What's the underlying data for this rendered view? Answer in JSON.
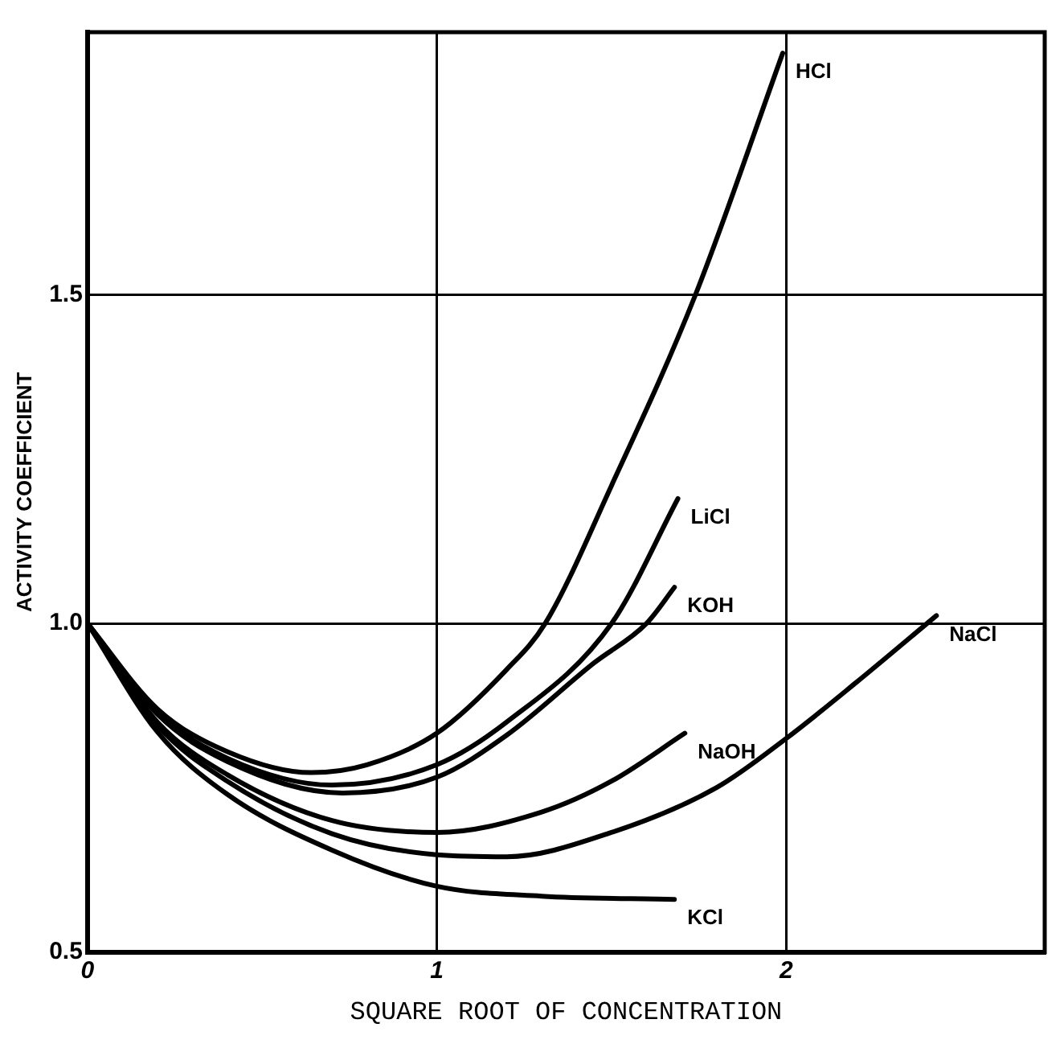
{
  "chart_data": {
    "type": "line",
    "xlabel": "SQUARE ROOT OF CONCENTRATION",
    "ylabel": "ACTIVITY COEFFICIENT",
    "xlim": [
      0,
      2.74
    ],
    "ylim": [
      0.5,
      1.9
    ],
    "xticks": [
      0,
      1,
      2
    ],
    "yticks": [
      0.5,
      {
        "value": 1.0,
        "label": "1.0"
      },
      1.5
    ],
    "grid": true,
    "legend": false,
    "marker": "none",
    "line_style": "solid",
    "series": [
      {
        "name": "HCl",
        "color": "#000000",
        "x": [
          0,
          0.2,
          0.4,
          0.64,
          0.8,
          1,
          1.2,
          1.31,
          1.5,
          1.74,
          1.99
        ],
        "values": [
          1,
          0.87,
          0.805,
          0.773,
          0.785,
          0.833,
          0.93,
          1.0,
          1.21,
          1.5,
          1.868
        ]
      },
      {
        "name": "LiCl",
        "color": "#000000",
        "x": [
          0,
          0.2,
          0.4,
          0.7,
          1,
          1.2,
          1.5,
          1.69
        ],
        "values": [
          1,
          0.865,
          0.795,
          0.754,
          0.785,
          0.85,
          1.0,
          1.19
        ]
      },
      {
        "name": "KOH",
        "color": "#000000",
        "x": [
          0,
          0.2,
          0.4,
          0.73,
          1,
          1.2,
          1.45,
          1.6,
          1.68
        ],
        "values": [
          1,
          0.862,
          0.79,
          0.742,
          0.766,
          0.83,
          0.94,
          1.0,
          1.055
        ]
      },
      {
        "name": "NaOH",
        "color": "#000000",
        "x": [
          0,
          0.2,
          0.4,
          0.7,
          1,
          1.3,
          1.5,
          1.71
        ],
        "values": [
          1,
          0.85,
          0.77,
          0.7,
          0.682,
          0.713,
          0.76,
          0.833
        ]
      },
      {
        "name": "NaCl",
        "color": "#000000",
        "x": [
          0,
          0.2,
          0.4,
          0.7,
          1,
          1.2,
          1.5,
          1.8,
          2,
          2.2,
          2.43
        ],
        "values": [
          1,
          0.845,
          0.76,
          0.68,
          0.648,
          0.645,
          0.682,
          0.75,
          0.825,
          0.91,
          1.012
        ]
      },
      {
        "name": "KCl",
        "color": "#000000",
        "x": [
          0,
          0.2,
          0.4,
          0.7,
          1,
          1.3,
          1.68
        ],
        "values": [
          1,
          0.835,
          0.74,
          0.655,
          0.6,
          0.585,
          0.58
        ]
      }
    ]
  }
}
